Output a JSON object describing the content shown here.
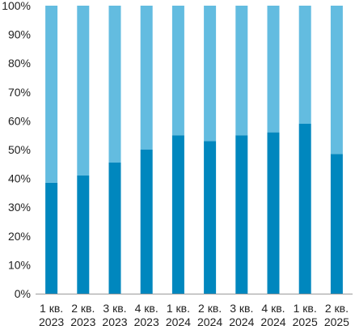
{
  "chart_data": {
    "type": "bar",
    "stacked": true,
    "percent": true,
    "categories": [
      [
        "1 кв.",
        "2023"
      ],
      [
        "2 кв.",
        "2023"
      ],
      [
        "3 кв.",
        "2023"
      ],
      [
        "4 кв.",
        "2023"
      ],
      [
        "1 кв.",
        "2024"
      ],
      [
        "2 кв.",
        "2024"
      ],
      [
        "3 кв.",
        "2024"
      ],
      [
        "4 кв.",
        "2024"
      ],
      [
        "1 кв.",
        "2025"
      ],
      [
        "2 кв.",
        "2025"
      ]
    ],
    "series": [
      {
        "values": [
          38.5,
          41,
          45.5,
          50,
          55,
          53,
          55,
          56,
          59,
          48.5
        ],
        "color": "#0087BE"
      },
      {
        "values": [
          61.5,
          59,
          54.5,
          50,
          45,
          47,
          45,
          44,
          41,
          51.5
        ],
        "color": "#63BCE0"
      }
    ],
    "ylim": [
      0,
      100
    ],
    "yticks": [
      "0%",
      "10%",
      "20%",
      "30%",
      "40%",
      "50%",
      "60%",
      "70%",
      "80%",
      "90%",
      "100%"
    ],
    "grid": false,
    "legend": "none",
    "title": "",
    "xlabel": "",
    "ylabel": ""
  }
}
